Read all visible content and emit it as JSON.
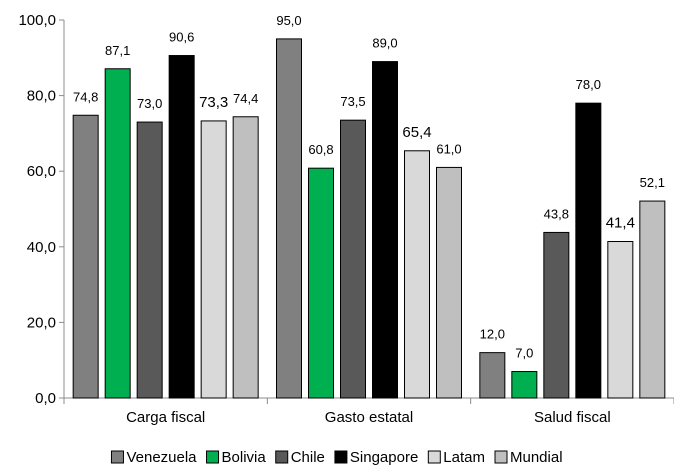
{
  "chart_data": {
    "type": "bar",
    "categories": [
      "Carga fiscal",
      "Gasto estatal",
      "Salud fiscal"
    ],
    "series": [
      {
        "name": "Venezuela",
        "color": "#808080",
        "values": [
          74.8,
          95.0,
          12.0
        ],
        "labels": [
          "74,8",
          "95,0",
          "12,0"
        ]
      },
      {
        "name": "Bolivia",
        "color": "#00b050",
        "values": [
          87.1,
          60.8,
          7.0
        ],
        "labels": [
          "87,1",
          "60,8",
          "7,0"
        ]
      },
      {
        "name": "Chile",
        "color": "#595959",
        "values": [
          73.0,
          73.5,
          43.8
        ],
        "labels": [
          "73,0",
          "73,5",
          "43,8"
        ]
      },
      {
        "name": "Singapore",
        "color": "#000000",
        "values": [
          90.6,
          89.0,
          78.0
        ],
        "labels": [
          "90,6",
          "89,0",
          "78,0"
        ]
      },
      {
        "name": "Latam",
        "color": "#d9d9d9",
        "values": [
          73.3,
          65.4,
          41.4
        ],
        "labels": [
          "73,3",
          "65,4",
          "41,4"
        ]
      },
      {
        "name": "Mundial",
        "color": "#bfbfbf",
        "values": [
          74.4,
          61.0,
          52.1
        ],
        "labels": [
          "74,4",
          "61,0",
          "52,1"
        ]
      }
    ],
    "ylim": [
      0,
      100
    ],
    "yticks": [
      0,
      20,
      40,
      60,
      80,
      100
    ],
    "ytick_labels": [
      "0,0",
      "20,0",
      "40,0",
      "60,0",
      "80,0",
      "100,0"
    ],
    "title": "",
    "xlabel": "",
    "ylabel": "",
    "grid": false,
    "legend_position": "bottom"
  }
}
